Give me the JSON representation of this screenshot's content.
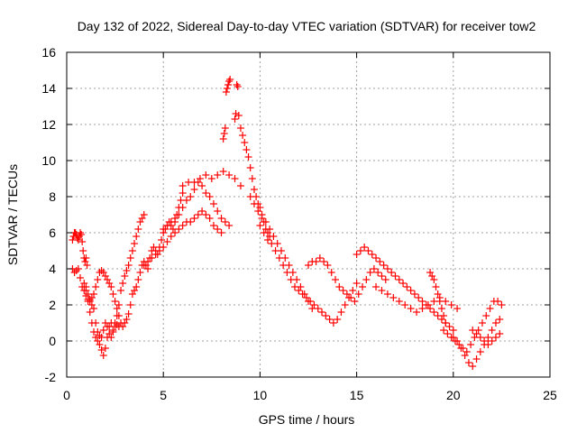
{
  "chart_data": {
    "type": "scatter",
    "title": "Day 132 of 2022, Sidereal Day-to-day VTEC variation (SDTVAR) for receiver tow2",
    "xlabel": "GPS time / hours",
    "ylabel": "SDTVAR / TECUs",
    "xlim": [
      0,
      25
    ],
    "ylim": [
      -2,
      16
    ],
    "xticks": [
      "0",
      "5",
      "10",
      "15",
      "20",
      "25"
    ],
    "yticks": [
      "-2",
      "0",
      "2",
      "4",
      "6",
      "8",
      "10",
      "12",
      "14",
      "16"
    ],
    "grid": true,
    "marker": "+",
    "color": "#ff0000",
    "series": [
      {
        "name": "SDTVAR",
        "x": [
          0.3,
          0.35,
          0.4,
          0.45,
          0.5,
          0.55,
          0.6,
          0.65,
          0.7,
          0.75,
          0.8,
          0.85,
          0.9,
          0.95,
          1.0,
          1.05,
          0.3,
          0.4,
          0.5,
          0.6,
          0.7,
          0.8,
          0.9,
          1.0,
          1.1,
          1.2,
          1.3,
          1.4,
          1.5,
          1.6,
          1.7,
          1.8,
          1.9,
          2.0,
          2.1,
          2.2,
          2.3,
          2.4,
          2.5,
          2.6,
          2.7,
          2.8,
          2.9,
          3.0,
          3.1,
          3.2,
          3.3,
          3.4,
          1.0,
          1.1,
          1.2,
          1.3,
          1.4,
          1.5,
          1.6,
          1.7,
          1.8,
          1.9,
          2.0,
          2.1,
          2.2,
          2.3,
          2.4,
          2.5,
          2.6,
          2.7,
          2.8,
          2.9,
          3.0,
          3.1,
          3.2,
          3.3,
          3.4,
          3.5,
          3.6,
          3.7,
          3.8,
          3.9,
          4.0,
          0.9,
          1.0,
          1.1,
          1.2,
          1.3,
          1.4,
          1.5,
          1.6,
          1.7,
          1.8,
          1.9,
          2.0,
          2.1,
          2.2,
          2.3,
          2.4,
          2.5,
          2.6,
          2.7,
          3.5,
          3.6,
          3.7,
          3.8,
          3.9,
          4.0,
          4.1,
          4.2,
          4.3,
          4.4,
          4.5,
          4.6,
          4.7,
          4.8,
          4.9,
          5.0,
          5.1,
          5.2,
          5.3,
          5.4,
          5.5,
          5.6,
          5.7,
          5.8,
          5.9,
          6.0,
          4.0,
          4.2,
          4.4,
          4.6,
          4.8,
          5.0,
          5.2,
          5.4,
          5.6,
          5.8,
          6.0,
          6.2,
          6.4,
          6.6,
          6.8,
          7.0,
          7.2,
          7.4,
          7.6,
          7.8,
          8.0,
          5.0,
          5.2,
          5.4,
          5.6,
          5.8,
          6.0,
          6.2,
          6.4,
          6.6,
          6.8,
          7.0,
          7.2,
          7.4,
          7.6,
          7.8,
          8.0,
          8.2,
          8.4,
          6.0,
          6.3,
          6.6,
          6.9,
          7.2,
          7.5,
          7.8,
          8.1,
          8.4,
          8.7,
          9.0,
          8.1,
          8.15,
          8.2,
          8.25,
          8.3,
          8.35,
          8.4,
          8.45,
          8.8,
          8.85,
          8.9,
          8.7,
          8.75,
          9.0,
          9.1,
          9.2,
          9.3,
          9.4,
          9.5,
          9.6,
          9.7,
          9.8,
          9.9,
          10.0,
          10.1,
          10.2,
          10.3,
          10.4,
          10.5,
          9.5,
          9.7,
          9.9,
          10.1,
          10.3,
          10.5,
          10.7,
          10.9,
          11.1,
          11.3,
          11.5,
          11.7,
          11.9,
          12.1,
          12.3,
          12.5,
          12.7,
          10.0,
          10.2,
          10.4,
          10.6,
          10.8,
          11.0,
          11.2,
          11.4,
          11.6,
          11.8,
          12.0,
          12.2,
          12.4,
          12.6,
          12.8,
          13.0,
          13.2,
          13.4,
          13.6,
          13.8,
          14.0,
          14.2,
          14.4,
          14.6,
          14.8,
          15.0,
          12.5,
          12.7,
          12.9,
          13.1,
          13.3,
          13.5,
          13.7,
          13.9,
          14.1,
          14.3,
          14.5,
          14.7,
          14.9,
          15.1,
          15.3,
          15.5,
          15.7,
          15.9,
          16.1,
          16.3,
          16.5,
          15.0,
          15.2,
          15.4,
          15.6,
          15.8,
          16.0,
          16.2,
          16.4,
          16.6,
          16.8,
          17.0,
          17.2,
          17.4,
          17.6,
          17.8,
          18.0,
          18.2,
          18.4,
          18.6,
          18.8,
          19.0,
          19.2,
          19.4,
          19.6,
          19.8,
          20.0,
          16.0,
          16.3,
          16.6,
          16.9,
          17.2,
          17.5,
          17.8,
          18.1,
          18.4,
          18.7,
          19.0,
          19.3,
          19.6,
          19.9,
          20.2,
          18.8,
          18.9,
          19.0,
          19.1,
          19.2,
          19.3,
          19.4,
          19.5,
          19.6,
          19.5,
          19.7,
          19.9,
          20.1,
          20.3,
          20.5,
          20.7,
          20.9,
          21.1,
          21.3,
          21.5,
          21.7,
          21.9,
          22.1,
          22.3,
          22.5,
          20.0,
          20.2,
          20.4,
          20.6,
          20.8,
          21.0,
          21.2,
          21.4,
          21.6,
          21.8,
          22.0,
          22.2,
          22.4,
          21.0,
          21.2,
          21.4,
          21.6,
          21.8,
          22.0,
          22.2,
          22.4
        ],
        "y": [
          5.6,
          5.8,
          6.0,
          6.0,
          5.9,
          5.7,
          5.6,
          5.8,
          6.0,
          5.9,
          5.5,
          5.0,
          4.6,
          4.4,
          4.6,
          4.2,
          4.0,
          3.8,
          3.9,
          4.0,
          3.5,
          3.0,
          2.8,
          2.5,
          2.3,
          2.2,
          2.4,
          2.6,
          3.0,
          3.4,
          3.8,
          3.9,
          3.8,
          3.6,
          3.4,
          3.2,
          3.0,
          2.6,
          2.2,
          1.8,
          1.4,
          1.0,
          0.8,
          1.0,
          1.2,
          1.5,
          2.0,
          2.6,
          2.8,
          2.2,
          1.6,
          1.0,
          0.5,
          0.2,
          0.0,
          -0.2,
          -0.5,
          -0.8,
          -0.4,
          0.2,
          0.8,
          1.0,
          0.6,
          0.8,
          1.4,
          2.0,
          2.8,
          3.2,
          3.6,
          3.9,
          4.2,
          4.6,
          5.0,
          5.4,
          5.8,
          6.2,
          6.6,
          6.8,
          7.0,
          3.2,
          3.0,
          2.6,
          2.3,
          2.0,
          1.8,
          1.0,
          0.5,
          0.3,
          0.2,
          0.6,
          1.0,
          0.8,
          0.4,
          0.2,
          0.5,
          1.0,
          0.9,
          0.8,
          2.8,
          3.0,
          3.4,
          3.8,
          4.2,
          4.4,
          4.2,
          4.0,
          4.6,
          5.0,
          5.2,
          5.0,
          4.8,
          5.2,
          5.6,
          6.0,
          6.2,
          6.4,
          6.6,
          6.4,
          6.2,
          6.6,
          7.0,
          7.4,
          7.8,
          8.2,
          4.2,
          4.4,
          4.6,
          4.8,
          5.0,
          5.2,
          5.5,
          5.8,
          6.0,
          6.2,
          6.4,
          6.6,
          6.6,
          6.8,
          7.0,
          7.2,
          7.0,
          6.8,
          6.4,
          6.2,
          6.0,
          6.2,
          6.4,
          6.6,
          6.8,
          7.0,
          7.4,
          7.8,
          8.0,
          8.4,
          8.8,
          8.6,
          8.2,
          8.0,
          7.6,
          7.2,
          6.8,
          6.6,
          6.4,
          8.6,
          8.8,
          8.8,
          9.0,
          9.2,
          9.0,
          9.2,
          9.4,
          9.2,
          9.0,
          8.6,
          11.2,
          11.5,
          11.8,
          13.8,
          14.0,
          14.2,
          14.4,
          14.5,
          14.2,
          14.1,
          12.5,
          12.3,
          12.6,
          11.8,
          11.4,
          11.0,
          10.6,
          10.2,
          9.6,
          9.0,
          8.4,
          8.0,
          7.6,
          7.4,
          7.0,
          6.6,
          6.2,
          6.0,
          5.8,
          8.0,
          7.6,
          7.2,
          6.8,
          6.6,
          6.2,
          5.8,
          5.4,
          5.0,
          4.6,
          4.2,
          3.8,
          3.4,
          3.0,
          2.6,
          2.2,
          1.8,
          6.4,
          6.0,
          5.6,
          5.4,
          5.0,
          4.6,
          4.2,
          3.8,
          3.4,
          3.0,
          2.8,
          2.6,
          2.4,
          2.2,
          2.0,
          1.8,
          1.6,
          1.4,
          1.2,
          1.0,
          1.2,
          1.6,
          2.0,
          2.4,
          2.8,
          3.2,
          4.2,
          4.4,
          4.4,
          4.6,
          4.4,
          4.2,
          3.8,
          3.4,
          3.0,
          2.8,
          2.6,
          2.4,
          2.2,
          2.6,
          3.0,
          3.4,
          3.8,
          4.0,
          3.8,
          3.6,
          3.4,
          4.8,
          5.0,
          5.2,
          5.0,
          4.8,
          4.6,
          4.4,
          4.2,
          4.0,
          3.8,
          3.6,
          3.4,
          3.2,
          3.0,
          2.8,
          2.6,
          2.4,
          2.2,
          2.0,
          1.8,
          1.6,
          1.4,
          1.2,
          1.0,
          0.8,
          0.6,
          3.0,
          2.8,
          2.6,
          2.4,
          2.2,
          2.0,
          1.8,
          1.6,
          1.8,
          2.0,
          2.2,
          2.4,
          2.2,
          2.0,
          1.8,
          3.8,
          3.6,
          3.4,
          3.0,
          2.6,
          2.2,
          1.8,
          1.4,
          1.0,
          0.6,
          0.4,
          0.2,
          0.0,
          -0.2,
          -0.4,
          -0.6,
          -0.2,
          0.2,
          0.6,
          1.0,
          1.4,
          1.8,
          2.2,
          2.2,
          2.0,
          0.2,
          0.0,
          -0.4,
          -0.8,
          -1.2,
          -1.4,
          -1.0,
          -0.6,
          -0.2,
          0.2,
          0.6,
          1.0,
          1.2,
          0.6,
          0.4,
          0.2,
          0.0,
          -0.2,
          0.0,
          0.2,
          0.4
        ]
      }
    ]
  }
}
